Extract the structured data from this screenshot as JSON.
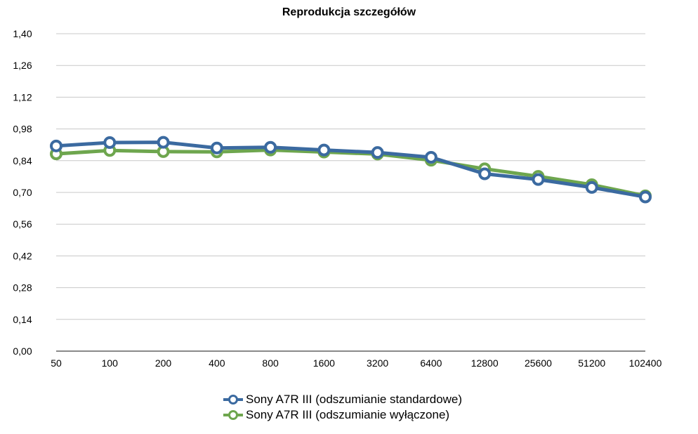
{
  "chart_data": {
    "type": "line",
    "title": "Reprodukcja szczegółów",
    "categories": [
      "50",
      "100",
      "200",
      "400",
      "800",
      "1600",
      "3200",
      "6400",
      "12800",
      "25600",
      "51200",
      "102400"
    ],
    "y_ticks": [
      "0,00",
      "0,14",
      "0,28",
      "0,42",
      "0,56",
      "0,70",
      "0,84",
      "0,98",
      "1,12",
      "1,26",
      "1,40"
    ],
    "ylim": [
      0,
      1.4
    ],
    "grid": true,
    "legend_position": "bottom",
    "series": [
      {
        "name": "Sony A7R III (odszumianie standardowe)",
        "color": "#3b6aa0",
        "values": [
          0.905,
          0.92,
          0.921,
          0.896,
          0.899,
          0.887,
          0.876,
          0.855,
          0.782,
          0.757,
          0.722,
          0.68
        ]
      },
      {
        "name": "Sony A7R III (odszumianie wyłączone)",
        "color": "#6ea64e",
        "values": [
          0.87,
          0.885,
          0.88,
          0.879,
          0.887,
          0.878,
          0.869,
          0.842,
          0.804,
          0.771,
          0.734,
          0.685
        ]
      }
    ]
  }
}
